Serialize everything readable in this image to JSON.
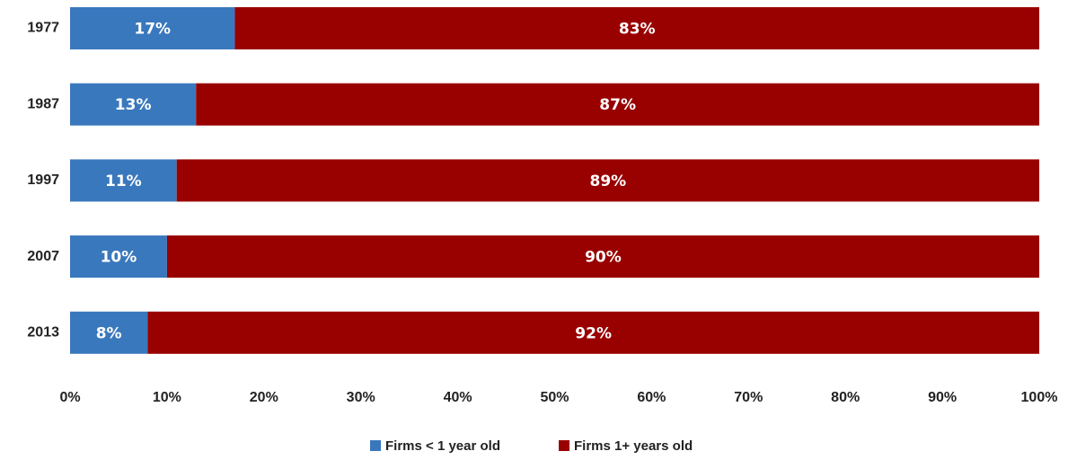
{
  "chart_data": {
    "type": "stacked-bar-horizontal",
    "categories": [
      "1977",
      "1987",
      "1997",
      "2007",
      "2013"
    ],
    "series": [
      {
        "name": "Firms < 1 year old",
        "color": "#3a78bd",
        "values": [
          17,
          13,
          11,
          10,
          8
        ],
        "value_labels": [
          "17%",
          "13%",
          "11%",
          "10%",
          "8%"
        ]
      },
      {
        "name": "Firms 1+ years old",
        "color": "#990000",
        "values": [
          83,
          87,
          89,
          90,
          92
        ],
        "value_labels": [
          "83%",
          "87%",
          "89%",
          "90%",
          "92%"
        ]
      }
    ],
    "xlim": [
      0,
      100
    ],
    "xticks": [
      {
        "value": 0,
        "label": "0%"
      },
      {
        "value": 10,
        "label": "10%"
      },
      {
        "value": 20,
        "label": "20%"
      },
      {
        "value": 30,
        "label": "30%"
      },
      {
        "value": 40,
        "label": "40%"
      },
      {
        "value": 50,
        "label": "50%"
      },
      {
        "value": 60,
        "label": "60%"
      },
      {
        "value": 70,
        "label": "70%"
      },
      {
        "value": 80,
        "label": "80%"
      },
      {
        "value": 90,
        "label": "90%"
      },
      {
        "value": 100,
        "label": "100%"
      }
    ],
    "legend": "bottom"
  }
}
